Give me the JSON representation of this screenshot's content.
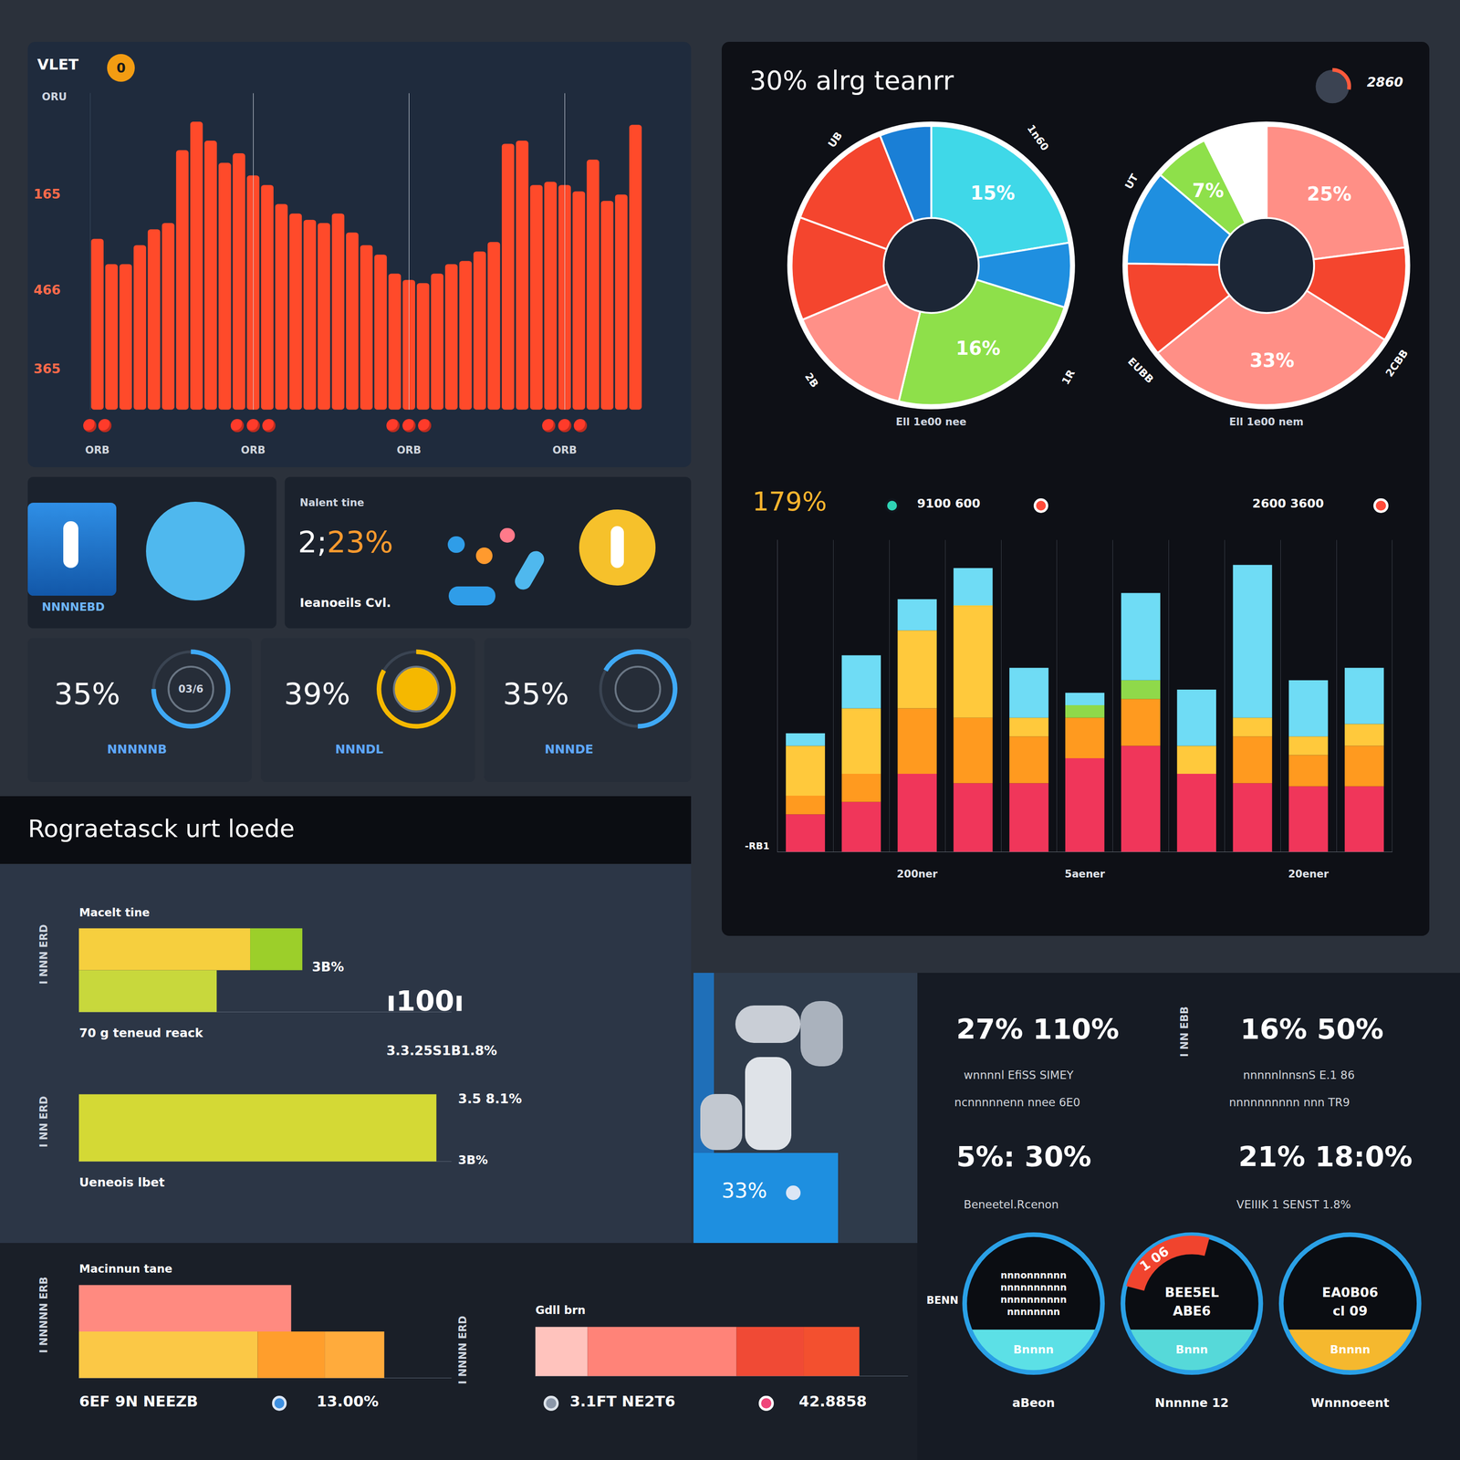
{
  "chart_data": [
    {
      "type": "bar",
      "title": "VLET",
      "subtitle": "ORU",
      "badge": "0",
      "annotations": [
        "165",
        "466",
        "365"
      ],
      "categories": [
        "ORB",
        null,
        null,
        null,
        null,
        null,
        null,
        null,
        null,
        null,
        null,
        "ORB",
        null,
        null,
        null,
        null,
        null,
        null,
        null,
        null,
        null,
        null,
        "ORB",
        null,
        null,
        null,
        null,
        null,
        null,
        null,
        null,
        null,
        null,
        "ORB",
        null,
        null,
        null,
        null,
        null
      ],
      "values": [
        54,
        46,
        46,
        52,
        57,
        59,
        82,
        91,
        85,
        78,
        81,
        74,
        71,
        65,
        62,
        60,
        59,
        62,
        56,
        52,
        49,
        43,
        41,
        40,
        43,
        46,
        47,
        50,
        53,
        84,
        85,
        71,
        72,
        71,
        69,
        79,
        66,
        68,
        90
      ],
      "color": "#ff4a2a",
      "ylim": [
        0,
        100
      ],
      "tick_labels": "x",
      "grid": true
    },
    {
      "type": "pie",
      "title": "30% alrg teanrr",
      "badge": "2860",
      "subtitle": "Ell 1e00 nee",
      "annotations": [
        "UB",
        "1n60",
        "2B",
        "1R"
      ],
      "values": [
        15,
        5,
        16,
        10,
        8,
        9,
        4
      ],
      "colors": [
        "#3fd8e8",
        "#1f8fe0",
        "#8ee04a",
        "#ff9088",
        "#f4452e",
        "#f4452e",
        "#1a7fd6"
      ],
      "value_labels": [
        "15%",
        null,
        "16%",
        null,
        null,
        null,
        null
      ],
      "data_labels": true
    },
    {
      "type": "pie",
      "subtitle": "Ell 1e00 nem",
      "annotations": [
        "UT",
        "EUBB",
        "2CBB"
      ],
      "values": [
        25,
        12,
        33,
        12,
        12,
        7,
        8
      ],
      "colors": [
        "#ff8f86",
        "#f4452e",
        "#ff8f86",
        "#f4452e",
        "#1f8fe0",
        "#8ee04a",
        "#ffffff"
      ],
      "value_labels": [
        "25%",
        null,
        "33%",
        null,
        null,
        "7%",
        null
      ],
      "data_labels": true
    },
    {
      "type": "bar",
      "title": "179%",
      "stacked": true,
      "annotations": [
        "9100 600",
        "2600 3600",
        "-RB1"
      ],
      "categories": [
        null,
        null,
        "200ner",
        null,
        null,
        "5aener",
        null,
        null,
        null,
        "20ener",
        null
      ],
      "series": [
        {
          "color": "#f0365a",
          "values": [
            12,
            16,
            25,
            22,
            22,
            30,
            34,
            25,
            22,
            21,
            21
          ]
        },
        {
          "color": "#ff9a1f",
          "values": [
            6,
            9,
            21,
            21,
            15,
            13,
            15,
            0,
            15,
            10,
            13
          ]
        },
        {
          "color": "#ffc93c",
          "values": [
            16,
            21,
            25,
            36,
            6,
            0,
            0,
            9,
            6,
            6,
            7
          ]
        },
        {
          "color": "#8fd94a",
          "values": [
            0,
            0,
            0,
            0,
            0,
            4,
            6,
            0,
            0,
            0,
            0
          ]
        },
        {
          "color": "#6fdcf5",
          "values": [
            4,
            17,
            10,
            12,
            16,
            4,
            28,
            18,
            49,
            18,
            18
          ]
        }
      ],
      "ylim": [
        0,
        100
      ],
      "tick_labels": "x",
      "grid": true
    },
    {
      "type": "bar",
      "orientation": "horizontal",
      "stacked": true,
      "title": "Rograetasck urt loede",
      "subtitle": "Macelt tine",
      "ylabel": "I NNN ERD",
      "annotations": [
        "3B%",
        "70 g teneud reack",
        "ı100ı",
        "3.3.25S1B1.8%"
      ],
      "categories": [
        null,
        null
      ],
      "series": [
        {
          "colors": [
            "#f6cf3e",
            "#c8d83c"
          ],
          "values": [
            46,
            37
          ]
        },
        {
          "color": "#9ccf2a",
          "values": [
            14,
            0
          ]
        }
      ],
      "xlim": [
        0,
        100
      ],
      "tick_labels": false
    },
    {
      "type": "bar",
      "orientation": "horizontal",
      "ylabel": "I NN ERD",
      "annotations": [
        "3.5 8.1%",
        "3B%",
        "Ueneois lbet"
      ],
      "categories": [
        null
      ],
      "series": [
        {
          "color": "#d4d935",
          "values": [
            96
          ]
        }
      ],
      "xlim": [
        0,
        100
      ],
      "tick_labels": false
    },
    {
      "type": "bar",
      "orientation": "horizontal",
      "stacked": true,
      "title": "Macinnun tane",
      "ylabel": "I NNNNN ERB",
      "annotations": [
        "6EF 9N NEEZB",
        "13.00%"
      ],
      "categories": [
        null,
        null
      ],
      "series": [
        {
          "colors": [
            "#ff8a80",
            "#fbc846"
          ],
          "values": [
            57,
            48
          ]
        },
        {
          "color": "#ff9e2c",
          "values": [
            0,
            18
          ]
        },
        {
          "color": "#ffab3c",
          "values": [
            0,
            16
          ]
        }
      ],
      "xlim": [
        0,
        100
      ],
      "tick_labels": false
    },
    {
      "type": "bar",
      "orientation": "horizontal",
      "stacked": true,
      "title": "Gdll brn",
      "ylabel": "I NNNN ERD",
      "annotations": [
        "3.1FT NE2T6",
        "42.8858"
      ],
      "categories": [
        null
      ],
      "series": [
        {
          "color": "#ffc3bd",
          "values": [
            14
          ]
        },
        {
          "color": "#ff8378",
          "values": [
            40
          ]
        },
        {
          "color": "#f04a35",
          "values": [
            18
          ]
        },
        {
          "color": "#f3502f",
          "values": [
            15
          ]
        }
      ],
      "xlim": [
        0,
        100
      ],
      "tick_labels": false
    }
  ],
  "cards": {
    "icon_card": {
      "label": "NNNNEBD"
    },
    "rate_card": {
      "header": "Nalent tine",
      "value": "2;",
      "value_accent": "23%",
      "caption": "Ieanoeils Cvl."
    },
    "kpis": [
      {
        "value": "35%",
        "ring_text": "03/6",
        "label": "NNNNNB"
      },
      {
        "value": "39%",
        "label": "NNNDL"
      },
      {
        "value": "35%",
        "label": "NNNDE"
      }
    ],
    "icon_panel": {
      "value": "33%"
    },
    "stats": {
      "side_label": "I NN EBB",
      "items": [
        {
          "value": "27% 110%",
          "lines": [
            "wnnnnl EfiSS SIMEY",
            "ncnnnnnenn nnee 6E0"
          ]
        },
        {
          "value": "16% 50%",
          "lines": [
            "nnnnnlnnsnS E.1 86",
            "nnnnnnnnnn nnn TR9"
          ]
        },
        {
          "value": "5%: 30%",
          "lines": [
            "Beneetel.Rcenon"
          ]
        },
        {
          "value": "21% 18:0%",
          "lines": [
            "VEIIIK 1 SENST 1.8%"
          ]
        }
      ]
    },
    "rings": {
      "side_label": "BENN",
      "items": [
        {
          "center_lines": [
            "nnnonnnnnn",
            "nnnnnnnnnn",
            "nnnnnnnnnn",
            "nnnnnnnn"
          ],
          "band": "Bnnnn",
          "label": "aBeon"
        },
        {
          "badge": "1 06",
          "center_lines": [
            "BEE5EL",
            "ABE6"
          ],
          "band": "Bnnn",
          "label": "Nnnnne 12"
        },
        {
          "center_lines": [
            "EA0B06",
            "cl 09"
          ],
          "band": "Bnnnn",
          "label": "Wnnnoeent"
        }
      ]
    }
  }
}
